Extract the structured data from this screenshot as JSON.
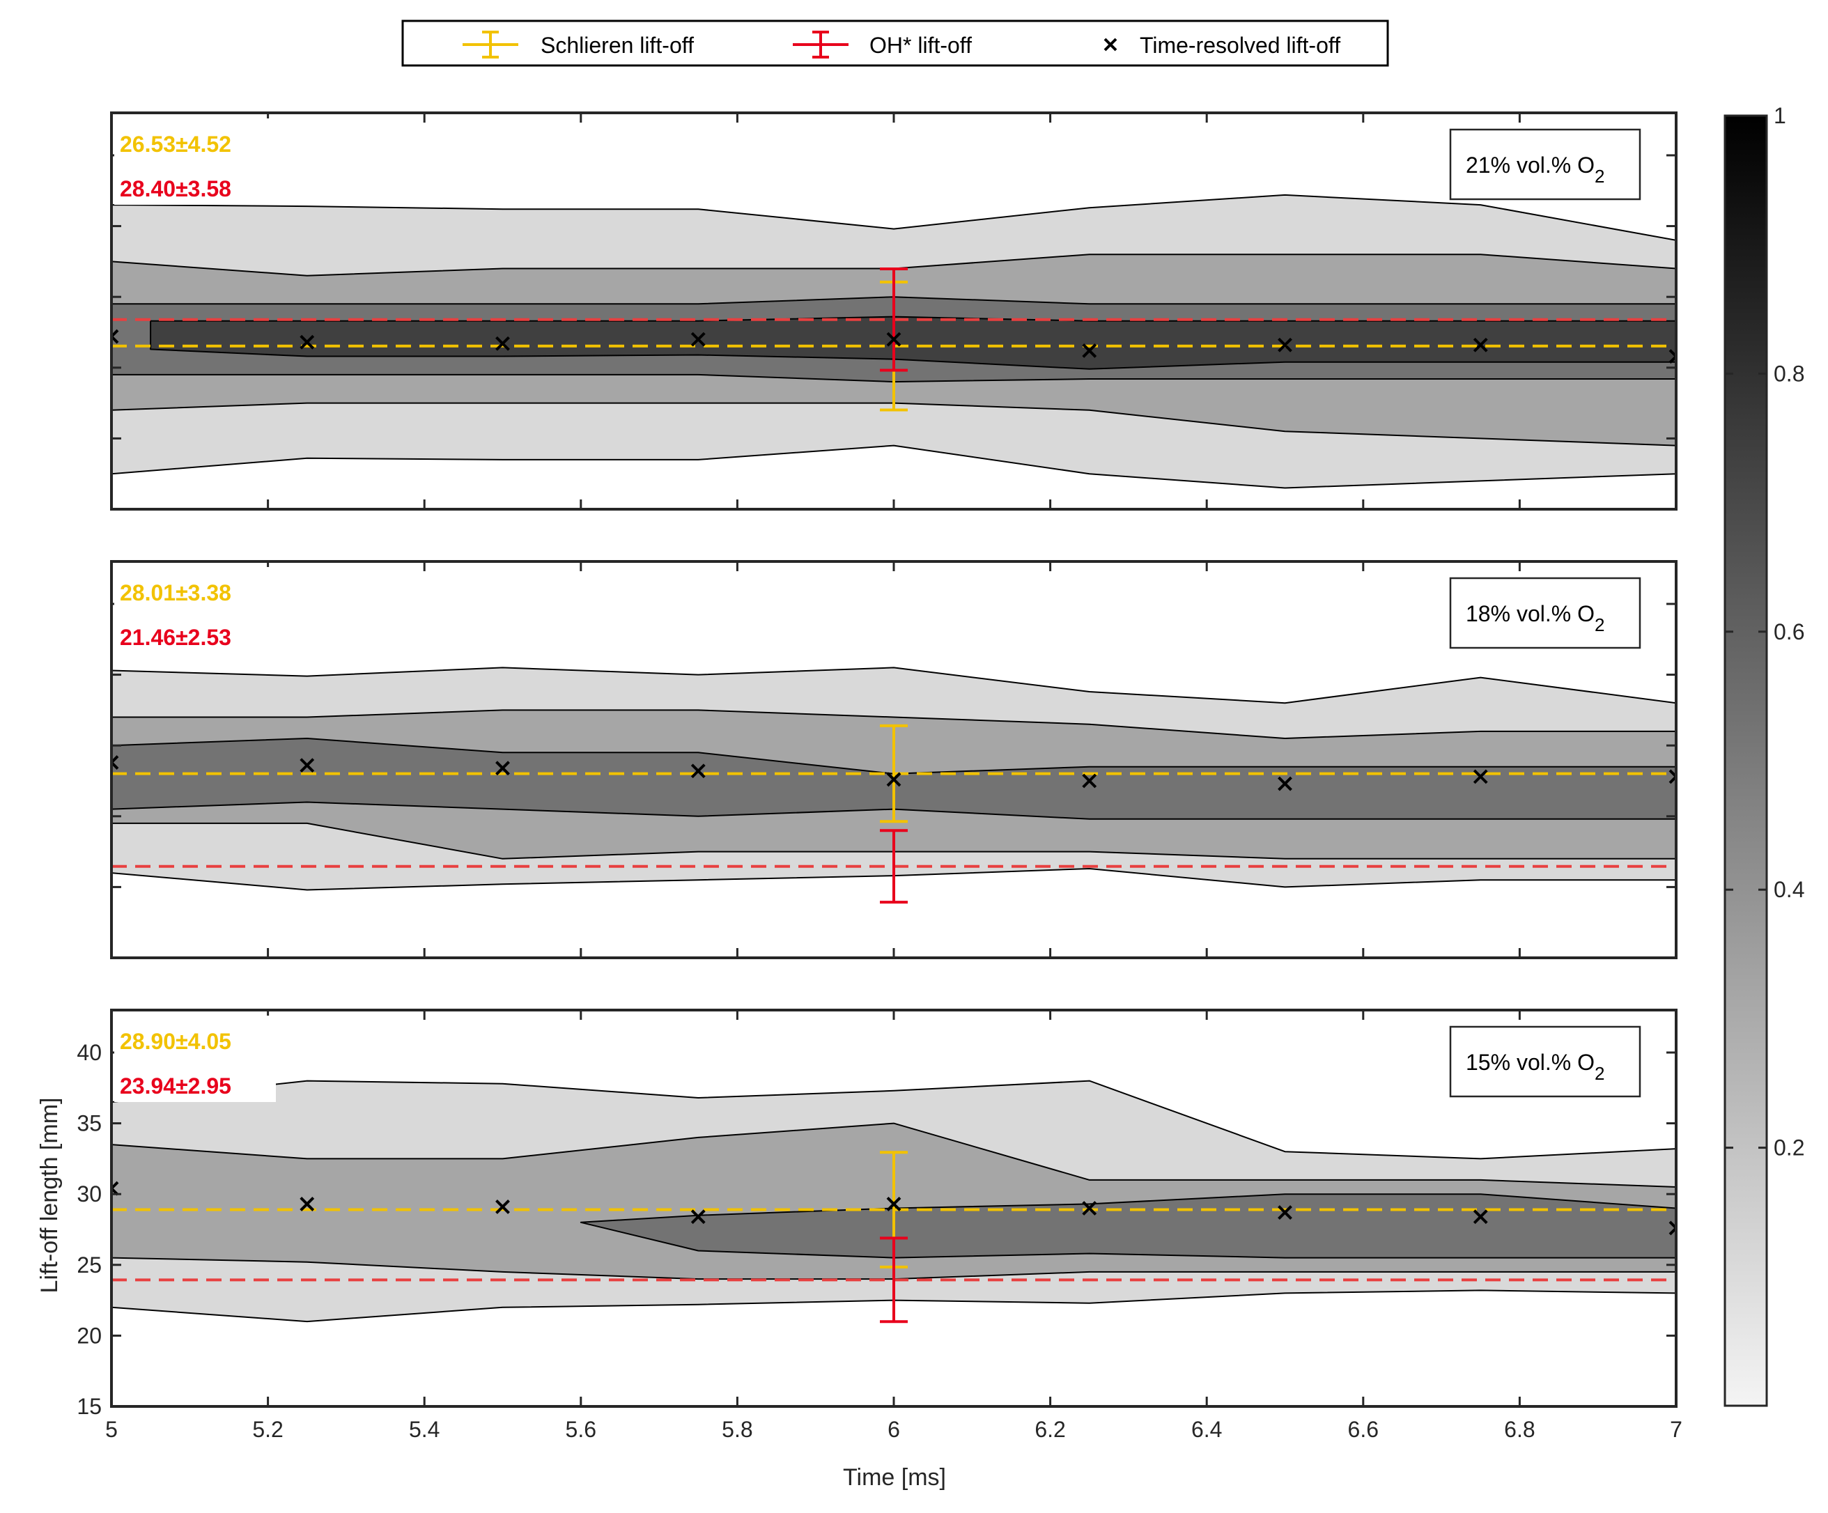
{
  "legend": {
    "items": [
      {
        "label": "Schlieren lift-off",
        "color": "#f2c200",
        "marker": "errorbar"
      },
      {
        "label": "OH* lift-off",
        "color": "#e8001c",
        "marker": "errorbar"
      },
      {
        "label": "Time-resolved lift-off",
        "color": "#000000",
        "marker": "x"
      }
    ]
  },
  "colorbar": {
    "ticks": [
      "0.2",
      "0.4",
      "0.6",
      "0.8",
      "1"
    ],
    "tick_values": [
      0.2,
      0.4,
      0.6,
      0.8,
      1.0
    ],
    "range": [
      0,
      1
    ],
    "colormap": "gray reversed"
  },
  "axes": {
    "xlabel": "Time [ms]",
    "ylabel": "Lift-off length [mm]",
    "xticks": [
      "5",
      "5.2",
      "5.4",
      "5.6",
      "5.8",
      "6",
      "6.2",
      "6.4",
      "6.6",
      "6.8",
      "7"
    ],
    "yticks": [
      "15",
      "20",
      "25",
      "30",
      "35",
      "40"
    ]
  },
  "chart_data": [
    {
      "type": "contour",
      "panel_label": "21% vol.% O",
      "panel_label_sub": "2",
      "schlieren_text": "26.53±4.52",
      "oh_text": "28.40±3.58",
      "xlim": [
        5,
        7
      ],
      "ylim": [
        15,
        43
      ],
      "schlieren": {
        "x": 6.0,
        "mean": 26.53,
        "err": 4.52
      },
      "oh": {
        "x": 6.0,
        "mean": 28.4,
        "err": 3.58
      },
      "time_resolved": {
        "x": [
          5.0,
          5.25,
          5.5,
          5.75,
          6.0,
          6.25,
          6.5,
          6.75,
          7.0
        ],
        "y": [
          27.2,
          26.8,
          26.7,
          27.0,
          27.0,
          26.2,
          26.6,
          26.6,
          25.8
        ]
      },
      "contours": [
        {
          "level": 0.1,
          "x": [
            5.0,
            5.25,
            5.5,
            5.75,
            6.0,
            6.25,
            6.5,
            6.75,
            7.0
          ],
          "upper": [
            36.5,
            36.4,
            36.2,
            36.2,
            34.8,
            36.3,
            37.2,
            36.5,
            34.0
          ],
          "lower": [
            17.5,
            18.6,
            18.5,
            18.5,
            19.5,
            17.5,
            16.5,
            17.0,
            17.5
          ]
        },
        {
          "level": 0.3,
          "x": [
            5.0,
            5.25,
            5.5,
            5.75,
            6.0,
            6.25,
            6.5,
            6.75,
            7.0
          ],
          "upper": [
            32.5,
            31.5,
            32.0,
            32.0,
            32.0,
            33.0,
            33.0,
            33.0,
            32.0
          ],
          "lower": [
            22.0,
            22.5,
            22.5,
            22.5,
            22.5,
            22.0,
            20.5,
            20.0,
            19.5
          ]
        },
        {
          "level": 0.5,
          "x": [
            5.0,
            5.25,
            5.5,
            5.75,
            6.0,
            6.25,
            6.5,
            6.75,
            7.0
          ],
          "upper": [
            29.5,
            29.5,
            29.5,
            29.5,
            30.0,
            29.5,
            29.5,
            29.5,
            29.5
          ],
          "lower": [
            24.5,
            24.5,
            24.5,
            24.5,
            24.0,
            24.2,
            24.2,
            24.2,
            24.2
          ]
        },
        {
          "level": 0.6,
          "x": [
            5.05,
            5.25,
            5.5,
            5.75,
            6.0,
            6.25,
            6.5,
            6.75,
            7.0
          ],
          "upper": [
            28.3,
            28.3,
            28.3,
            28.3,
            28.6,
            28.3,
            28.3,
            28.3,
            28.3
          ],
          "lower": [
            26.3,
            25.8,
            25.8,
            25.9,
            25.6,
            24.9,
            25.4,
            25.4,
            25.4
          ]
        }
      ]
    },
    {
      "type": "contour",
      "panel_label": "18% vol.% O",
      "panel_label_sub": "2",
      "schlieren_text": "28.01±3.38",
      "oh_text": "21.46±2.53",
      "xlim": [
        5,
        7
      ],
      "ylim": [
        15,
        43
      ],
      "schlieren": {
        "x": 6.0,
        "mean": 28.01,
        "err": 3.38
      },
      "oh": {
        "x": 6.0,
        "mean": 21.46,
        "err": 2.53
      },
      "time_resolved": {
        "x": [
          5.0,
          5.25,
          5.5,
          5.75,
          6.0,
          6.25,
          6.5,
          6.75,
          7.0
        ],
        "y": [
          28.8,
          28.6,
          28.4,
          28.2,
          27.6,
          27.5,
          27.3,
          27.8,
          27.8
        ]
      },
      "contours": [
        {
          "level": 0.1,
          "x": [
            5.0,
            5.25,
            5.5,
            5.75,
            6.0,
            6.25,
            6.5,
            6.75,
            7.0
          ],
          "upper": [
            35.3,
            34.9,
            35.5,
            35.0,
            35.5,
            33.8,
            33.0,
            34.8,
            33.0
          ],
          "lower": [
            21.0,
            19.8,
            20.2,
            20.5,
            20.8,
            21.3,
            20.0,
            20.5,
            20.5
          ]
        },
        {
          "level": 0.3,
          "x": [
            5.0,
            5.25,
            5.5,
            5.75,
            6.0,
            6.25,
            6.5,
            6.75,
            7.0
          ],
          "upper": [
            32.0,
            32.0,
            32.5,
            32.5,
            32.0,
            31.5,
            30.5,
            31.0,
            31.0
          ],
          "lower": [
            24.5,
            24.5,
            22.0,
            22.5,
            22.5,
            22.5,
            22.0,
            22.0,
            22.0
          ]
        },
        {
          "level": 0.5,
          "x": [
            5.0,
            5.25,
            5.5,
            5.75,
            6.0,
            6.25,
            6.5,
            6.75,
            7.0
          ],
          "upper": [
            30.0,
            30.5,
            29.5,
            29.5,
            28.0,
            28.5,
            28.5,
            28.5,
            28.5
          ],
          "lower": [
            25.5,
            26.0,
            25.5,
            25.0,
            25.5,
            24.8,
            24.8,
            24.8,
            24.8
          ]
        }
      ]
    },
    {
      "type": "contour",
      "panel_label": "15% vol.% O",
      "panel_label_sub": "2",
      "schlieren_text": "28.90±4.05",
      "oh_text": "23.94±2.95",
      "xlim": [
        5,
        7
      ],
      "ylim": [
        15,
        43
      ],
      "schlieren": {
        "x": 6.0,
        "mean": 28.9,
        "err": 4.05
      },
      "oh": {
        "x": 6.0,
        "mean": 23.94,
        "err": 2.95
      },
      "time_resolved": {
        "x": [
          5.0,
          5.25,
          5.5,
          5.75,
          6.0,
          6.25,
          6.5,
          6.75,
          7.0
        ],
        "y": [
          30.4,
          29.3,
          29.1,
          28.4,
          29.3,
          29.0,
          28.7,
          28.4,
          27.6
        ]
      },
      "contours": [
        {
          "level": 0.1,
          "x": [
            5.0,
            5.25,
            5.5,
            5.75,
            6.0,
            6.25,
            6.5,
            6.75,
            7.0
          ],
          "upper": [
            36.5,
            38.0,
            37.8,
            36.8,
            37.3,
            38.0,
            33.0,
            32.5,
            33.2
          ],
          "lower": [
            22.0,
            21.0,
            22.0,
            22.2,
            22.5,
            22.3,
            23.0,
            23.2,
            23.0
          ]
        },
        {
          "level": 0.3,
          "x": [
            5.0,
            5.25,
            5.5,
            5.75,
            6.0,
            6.25,
            6.5,
            6.75,
            7.0
          ],
          "upper": [
            33.5,
            32.5,
            32.5,
            34.0,
            35.0,
            31.0,
            31.0,
            31.0,
            30.5
          ],
          "lower": [
            25.5,
            25.2,
            24.5,
            24.0,
            24.0,
            24.5,
            24.5,
            24.5,
            24.5
          ]
        },
        {
          "level": 0.5,
          "x": [
            5.6,
            5.75,
            6.0,
            6.25,
            6.5,
            6.75,
            7.0
          ],
          "upper": [
            28.0,
            28.5,
            29.0,
            29.3,
            30.0,
            30.0,
            29.0
          ],
          "lower": [
            28.0,
            26.0,
            25.5,
            25.8,
            25.5,
            25.5,
            25.5
          ]
        }
      ]
    }
  ]
}
